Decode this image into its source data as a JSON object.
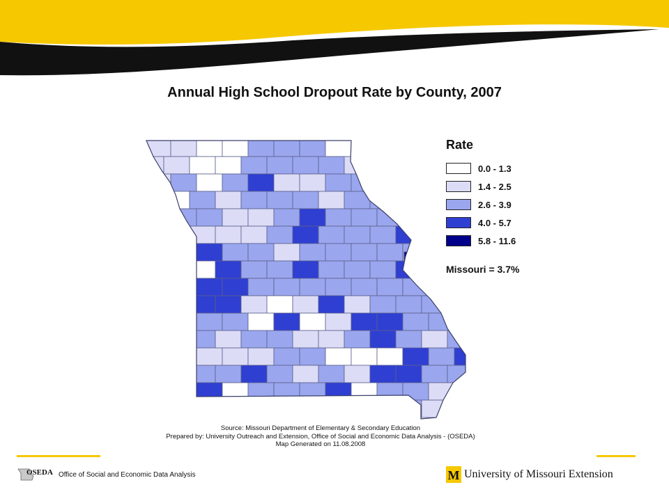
{
  "slide": {
    "title": "Annual High School Dropout Rate by County, 2007"
  },
  "legend": {
    "title": "Rate",
    "classes": [
      {
        "label": "0.0 - 1.3",
        "color": "#ffffff"
      },
      {
        "label": "1.4 - 2.5",
        "color": "#dcdcf7"
      },
      {
        "label": "2.6 - 3.9",
        "color": "#9aa6ee"
      },
      {
        "label": "4.0 - 5.7",
        "color": "#2f3fd2"
      },
      {
        "label": "5.8 - 11.6",
        "color": "#00008a"
      }
    ],
    "state_rate": "Missouri = 3.7%"
  },
  "source": {
    "line1": "Source:  Missouri Department of Elementary & Secondary Education",
    "line2": "Prepared by: University Outreach and Extension, Office of Social and Economic Data Analysis - (OSEDA)",
    "line3": "Map Generated on 11.08.2008"
  },
  "footer": {
    "oseda_logo": "OSEDA",
    "oseda_org": "Office of Social and Economic Data Analysis",
    "mu_extension": "University of Missouri Extension",
    "mu_logo_letter": "M",
    "rule_color": "#f5c800"
  },
  "header": {
    "gold": "#f5c800",
    "black": "#111111"
  }
}
